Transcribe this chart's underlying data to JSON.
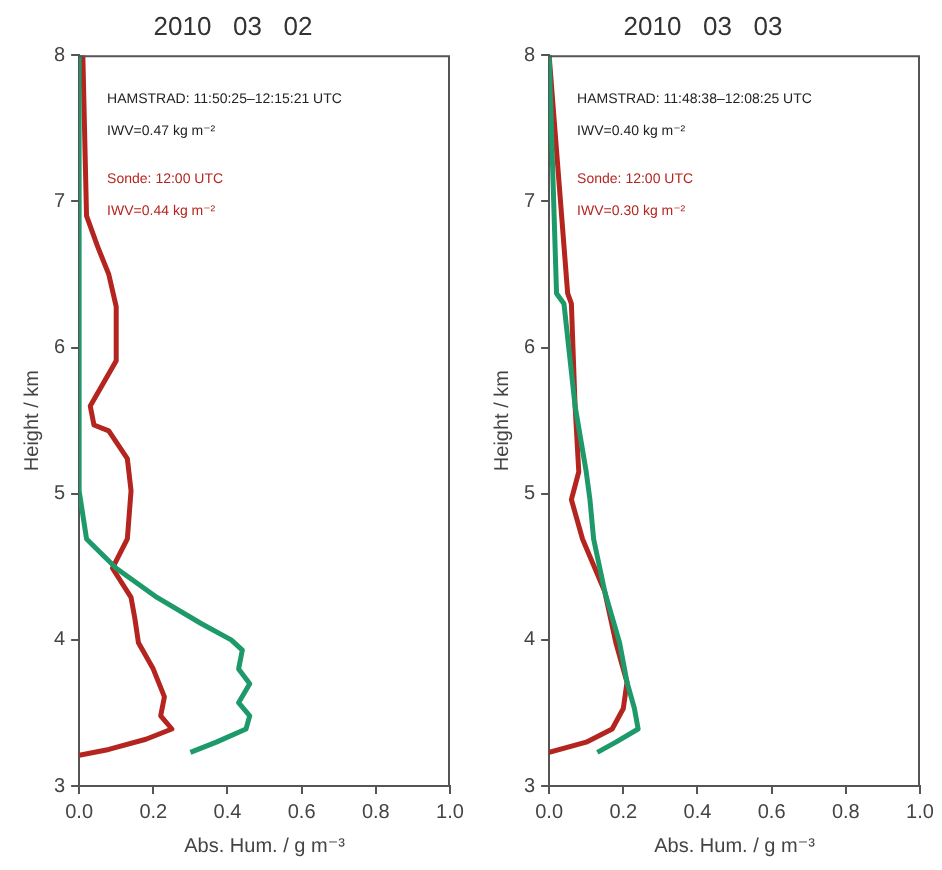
{
  "chart_data": [
    {
      "type": "line",
      "title": "2010   03   02",
      "xlabel": "Abs. Hum. / g m⁻³",
      "ylabel": "Height / km",
      "marker": "none",
      "legend": false,
      "grid": false,
      "annotations": [
        "HAMSTRAD: 11:50:25–12:15:21 UTC",
        "IWV=0.47 kg m⁻²",
        "Sonde: 12:00 UTC",
        "IWV=0.44 kg m⁻²"
      ],
      "series": [
        {
          "color": "#1e9a6a",
          "x": [
            0,
            0,
            0.02,
            0.1,
            0.21,
            0.33,
            0.41,
            0.44,
            0.43,
            0.46,
            0.43,
            0.46,
            0.45,
            0.37,
            0.3
          ],
          "values": [
            8,
            5.02,
            4.69,
            4.49,
            4.29,
            4.11,
            4,
            3.93,
            3.8,
            3.7,
            3.57,
            3.48,
            3.39,
            3.3,
            3.23
          ]
        },
        {
          "color": "#b5251f",
          "x": [
            0.01,
            0.02,
            0.05,
            0.08,
            0.1,
            0.1,
            0.03,
            0.04,
            0.08,
            0.13,
            0.14,
            0.13,
            0.09,
            0.14,
            0.15,
            0.16,
            0.2,
            0.23,
            0.22,
            0.25,
            0.18,
            0.08,
            0
          ],
          "values": [
            8,
            6.9,
            6.69,
            6.5,
            6.28,
            5.91,
            5.6,
            5.47,
            5.43,
            5.24,
            5.02,
            4.69,
            4.49,
            4.29,
            4.15,
            3.98,
            3.8,
            3.61,
            3.48,
            3.39,
            3.32,
            3.25,
            3.21
          ]
        }
      ],
      "xlim": [
        0,
        1
      ],
      "xticks": [
        {
          "value": 0,
          "label": "0.0"
        },
        {
          "value": 0.2,
          "label": "0.2"
        },
        {
          "value": 0.4,
          "label": "0.4"
        },
        {
          "value": 0.6,
          "label": "0.6"
        },
        {
          "value": 0.8,
          "label": "0.8"
        },
        {
          "value": 1,
          "label": "1.0"
        }
      ],
      "ylim": [
        3,
        8
      ],
      "yticks": [
        3,
        4,
        5,
        6,
        7,
        8
      ]
    },
    {
      "type": "line",
      "title": "2010   03   03",
      "xlabel": "Abs. Hum. / g m⁻³",
      "ylabel": "Height / km",
      "marker": "none",
      "legend": false,
      "grid": false,
      "annotations": [
        "HAMSTRAD: 11:48:38–12:08:25 UTC",
        "IWV=0.40 kg m⁻²",
        "Sonde: 12:00 UTC",
        "IWV=0.30 kg m⁻²"
      ],
      "series": [
        {
          "color": "#1e9a6a",
          "x": [
            0,
            0.02,
            0.04,
            0.07,
            0.1,
            0.11,
            0.12,
            0.15,
            0.19,
            0.21,
            0.23,
            0.24,
            0.18,
            0.13
          ],
          "values": [
            8,
            6.37,
            6.3,
            5.6,
            5.15,
            4.96,
            4.69,
            4.33,
            3.98,
            3.71,
            3.53,
            3.39,
            3.3,
            3.23
          ]
        },
        {
          "color": "#b5251f",
          "x": [
            0,
            0.05,
            0.06,
            0.07,
            0.08,
            0.06,
            0.09,
            0.15,
            0.18,
            0.21,
            0.2,
            0.17,
            0.1,
            0
          ],
          "values": [
            8,
            6.37,
            6.3,
            5.6,
            5.15,
            4.96,
            4.69,
            4.33,
            3.98,
            3.71,
            3.53,
            3.39,
            3.3,
            3.23
          ]
        }
      ],
      "xlim": [
        0,
        1
      ],
      "xticks": [
        {
          "value": 0,
          "label": "0.0"
        },
        {
          "value": 0.2,
          "label": "0.2"
        },
        {
          "value": 0.4,
          "label": "0.4"
        },
        {
          "value": 0.6,
          "label": "0.6"
        },
        {
          "value": 0.8,
          "label": "0.8"
        },
        {
          "value": 1,
          "label": "1.0"
        }
      ],
      "ylim": [
        3,
        8
      ],
      "yticks": [
        3,
        4,
        5,
        6,
        7,
        8
      ]
    }
  ]
}
